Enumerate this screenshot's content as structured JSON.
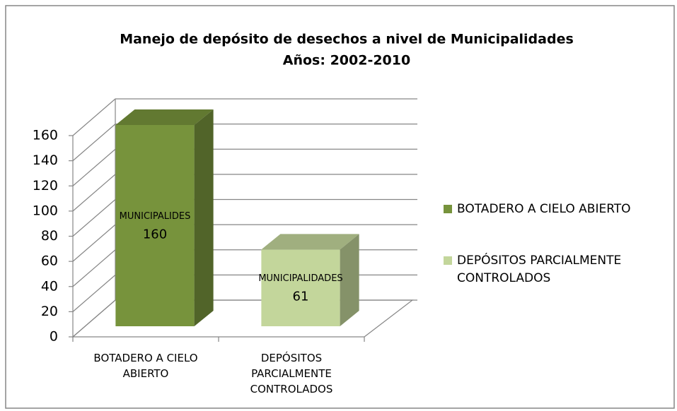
{
  "chart_data": {
    "type": "bar3d",
    "title": "Manejo de depósito de desechos a nivel de Municipalidades",
    "subtitle": "Años: 2002-2010",
    "categories": [
      "BOTADERO A CIELO ABIERTO",
      "DEPÓSITOS PARCIALMENTE CONTROLADOS"
    ],
    "values": [
      160,
      61
    ],
    "colors": [
      "#77933c",
      "#c3d69b"
    ],
    "data_label_names": [
      "MUNICIPALIDES",
      "MUNICIPALIDADES"
    ],
    "ylim": [
      0,
      160
    ],
    "yticks": [
      0,
      20,
      40,
      60,
      80,
      100,
      120,
      140,
      160
    ],
    "grid": true,
    "legend": "right"
  }
}
